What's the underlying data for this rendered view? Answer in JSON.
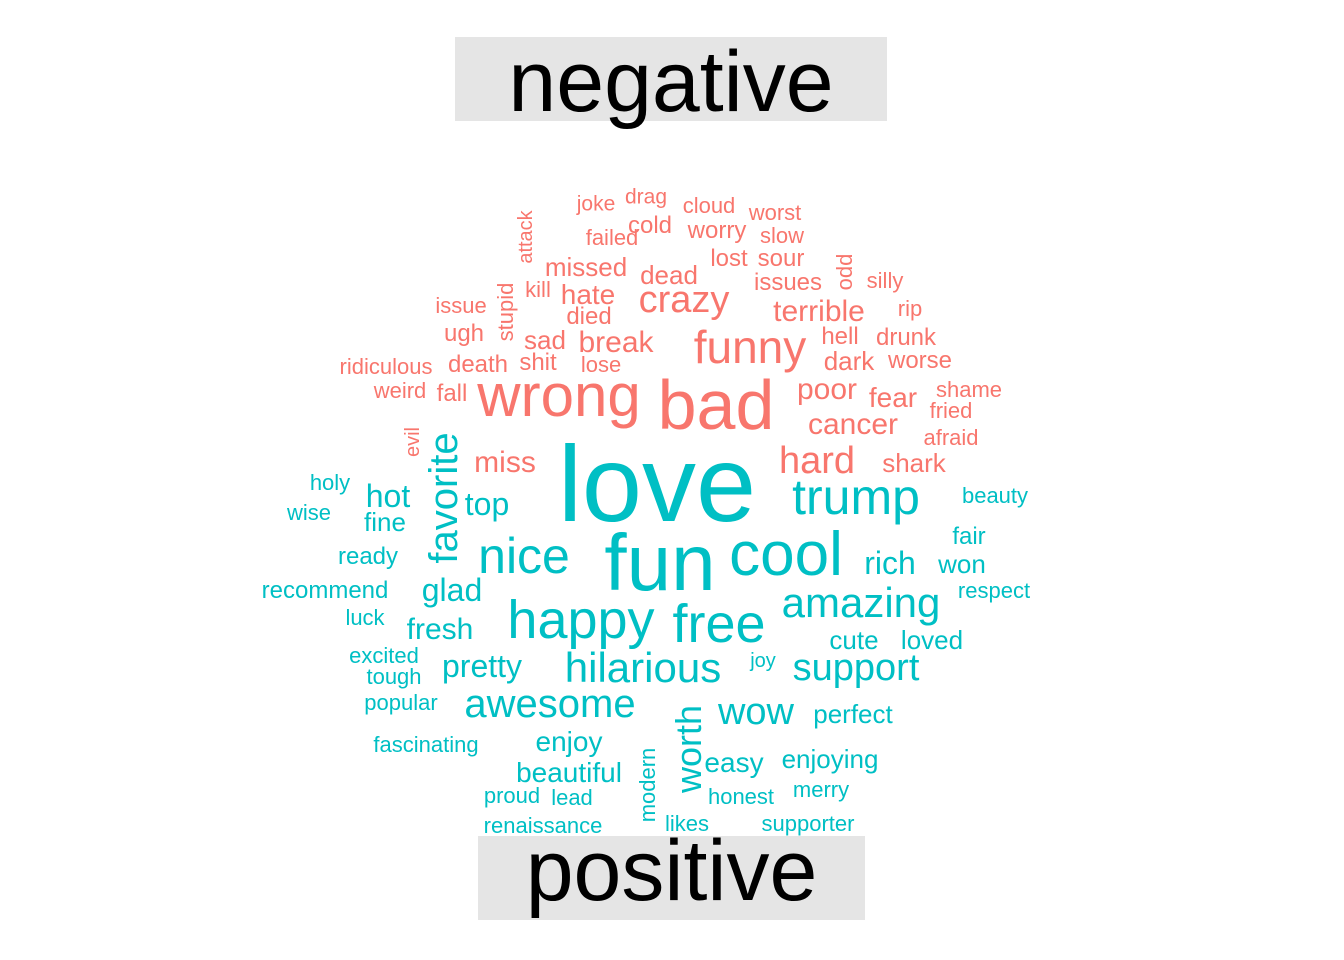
{
  "chart_data": {
    "type": "comparison word cloud",
    "groups": [
      {
        "name": "negative",
        "color": "#F8766D"
      },
      {
        "name": "positive",
        "color": "#00BFC4"
      }
    ],
    "words": [
      {
        "text": "joke",
        "group": "negative",
        "size": 1
      },
      {
        "text": "drag",
        "group": "negative",
        "size": 1
      },
      {
        "text": "cloud",
        "group": "negative",
        "size": 1
      },
      {
        "text": "worst",
        "group": "negative",
        "size": 1
      },
      {
        "text": "attack",
        "group": "negative",
        "size": 1,
        "rotated": true
      },
      {
        "text": "failed",
        "group": "negative",
        "size": 1
      },
      {
        "text": "cold",
        "group": "negative",
        "size": 2
      },
      {
        "text": "worry",
        "group": "negative",
        "size": 1.5
      },
      {
        "text": "slow",
        "group": "negative",
        "size": 1
      },
      {
        "text": "lost",
        "group": "negative",
        "size": 1.5
      },
      {
        "text": "sour",
        "group": "negative",
        "size": 1.5
      },
      {
        "text": "odd",
        "group": "negative",
        "size": 1,
        "rotated": true
      },
      {
        "text": "missed",
        "group": "negative",
        "size": 2
      },
      {
        "text": "dead",
        "group": "negative",
        "size": 2
      },
      {
        "text": "silly",
        "group": "negative",
        "size": 1
      },
      {
        "text": "issues",
        "group": "negative",
        "size": 1.5
      },
      {
        "text": "kill",
        "group": "negative",
        "size": 1
      },
      {
        "text": "stupid",
        "group": "negative",
        "size": 1,
        "rotated": true
      },
      {
        "text": "hate",
        "group": "negative",
        "size": 2.5
      },
      {
        "text": "crazy",
        "group": "negative",
        "size": 4
      },
      {
        "text": "issue",
        "group": "negative",
        "size": 1
      },
      {
        "text": "died",
        "group": "negative",
        "size": 1.5
      },
      {
        "text": "terrible",
        "group": "negative",
        "size": 2.5
      },
      {
        "text": "rip",
        "group": "negative",
        "size": 1
      },
      {
        "text": "ugh",
        "group": "negative",
        "size": 1.5
      },
      {
        "text": "sad",
        "group": "negative",
        "size": 2
      },
      {
        "text": "break",
        "group": "negative",
        "size": 2.5
      },
      {
        "text": "hell",
        "group": "negative",
        "size": 1.5
      },
      {
        "text": "drunk",
        "group": "negative",
        "size": 1.5
      },
      {
        "text": "funny",
        "group": "negative",
        "size": 5
      },
      {
        "text": "ridiculous",
        "group": "negative",
        "size": 1
      },
      {
        "text": "death",
        "group": "negative",
        "size": 1.5
      },
      {
        "text": "shit",
        "group": "negative",
        "size": 1.5
      },
      {
        "text": "lose",
        "group": "negative",
        "size": 1
      },
      {
        "text": "dark",
        "group": "negative",
        "size": 2
      },
      {
        "text": "worse",
        "group": "negative",
        "size": 1.5
      },
      {
        "text": "weird",
        "group": "negative",
        "size": 1
      },
      {
        "text": "fall",
        "group": "negative",
        "size": 1.5
      },
      {
        "text": "wrong",
        "group": "negative",
        "size": 7
      },
      {
        "text": "bad",
        "group": "negative",
        "size": 8
      },
      {
        "text": "poor",
        "group": "negative",
        "size": 2.5
      },
      {
        "text": "shame",
        "group": "negative",
        "size": 1
      },
      {
        "text": "fear",
        "group": "negative",
        "size": 2
      },
      {
        "text": "fried",
        "group": "negative",
        "size": 1
      },
      {
        "text": "cancer",
        "group": "negative",
        "size": 2.5
      },
      {
        "text": "evil",
        "group": "negative",
        "size": 1,
        "rotated": true
      },
      {
        "text": "afraid",
        "group": "negative",
        "size": 1
      },
      {
        "text": "miss",
        "group": "negative",
        "size": 2.5
      },
      {
        "text": "hard",
        "group": "negative",
        "size": 3.5
      },
      {
        "text": "shark",
        "group": "negative",
        "size": 2
      },
      {
        "text": "love",
        "group": "positive",
        "size": 12
      },
      {
        "text": "fun",
        "group": "positive",
        "size": 9
      },
      {
        "text": "cool",
        "group": "positive",
        "size": 7
      },
      {
        "text": "nice",
        "group": "positive",
        "size": 6
      },
      {
        "text": "trump",
        "group": "positive",
        "size": 6
      },
      {
        "text": "happy",
        "group": "positive",
        "size": 6
      },
      {
        "text": "free",
        "group": "positive",
        "size": 6
      },
      {
        "text": "favorite",
        "group": "positive",
        "size": 5,
        "rotated": true
      },
      {
        "text": "hilarious",
        "group": "positive",
        "size": 5
      },
      {
        "text": "amazing",
        "group": "positive",
        "size": 5
      },
      {
        "text": "awesome",
        "group": "positive",
        "size": 4.5
      },
      {
        "text": "worth",
        "group": "positive",
        "size": 4,
        "rotated": true
      },
      {
        "text": "support",
        "group": "positive",
        "size": 4
      },
      {
        "text": "wow",
        "group": "positive",
        "size": 4
      },
      {
        "text": "rich",
        "group": "positive",
        "size": 3.5
      },
      {
        "text": "top",
        "group": "positive",
        "size": 3.5
      },
      {
        "text": "glad",
        "group": "positive",
        "size": 3.5
      },
      {
        "text": "pretty",
        "group": "positive",
        "size": 3.5
      },
      {
        "text": "hot",
        "group": "positive",
        "size": 3.5
      },
      {
        "text": "fresh",
        "group": "positive",
        "size": 3
      },
      {
        "text": "fine",
        "group": "positive",
        "size": 2.5
      },
      {
        "text": "cute",
        "group": "positive",
        "size": 2.5
      },
      {
        "text": "loved",
        "group": "positive",
        "size": 2.5
      },
      {
        "text": "won",
        "group": "positive",
        "size": 2.5
      },
      {
        "text": "enjoy",
        "group": "positive",
        "size": 2.5
      },
      {
        "text": "beautiful",
        "group": "positive",
        "size": 2.5
      },
      {
        "text": "easy",
        "group": "positive",
        "size": 2.5
      },
      {
        "text": "enjoying",
        "group": "positive",
        "size": 2.5
      },
      {
        "text": "perfect",
        "group": "positive",
        "size": 2
      },
      {
        "text": "fair",
        "group": "positive",
        "size": 2
      },
      {
        "text": "beauty",
        "group": "positive",
        "size": 1.5
      },
      {
        "text": "holy",
        "group": "positive",
        "size": 1.5
      },
      {
        "text": "wise",
        "group": "positive",
        "size": 1.5
      },
      {
        "text": "ready",
        "group": "positive",
        "size": 2
      },
      {
        "text": "recommend",
        "group": "positive",
        "size": 2
      },
      {
        "text": "respect",
        "group": "positive",
        "size": 1.5
      },
      {
        "text": "luck",
        "group": "positive",
        "size": 1.5
      },
      {
        "text": "excited",
        "group": "positive",
        "size": 1.5
      },
      {
        "text": "tough",
        "group": "positive",
        "size": 1.5
      },
      {
        "text": "joy",
        "group": "positive",
        "size": 1
      },
      {
        "text": "popular",
        "group": "positive",
        "size": 1.5
      },
      {
        "text": "fascinating",
        "group": "positive",
        "size": 1.5
      },
      {
        "text": "modern",
        "group": "positive",
        "size": 1.5,
        "rotated": true
      },
      {
        "text": "proud",
        "group": "positive",
        "size": 1.5
      },
      {
        "text": "lead",
        "group": "positive",
        "size": 1.5
      },
      {
        "text": "honest",
        "group": "positive",
        "size": 1.5
      },
      {
        "text": "merry",
        "group": "positive",
        "size": 1.5
      },
      {
        "text": "renaissance",
        "group": "positive",
        "size": 1.5
      },
      {
        "text": "likes",
        "group": "positive",
        "size": 1.5
      },
      {
        "text": "supporter",
        "group": "positive",
        "size": 1.5
      }
    ]
  }
}
